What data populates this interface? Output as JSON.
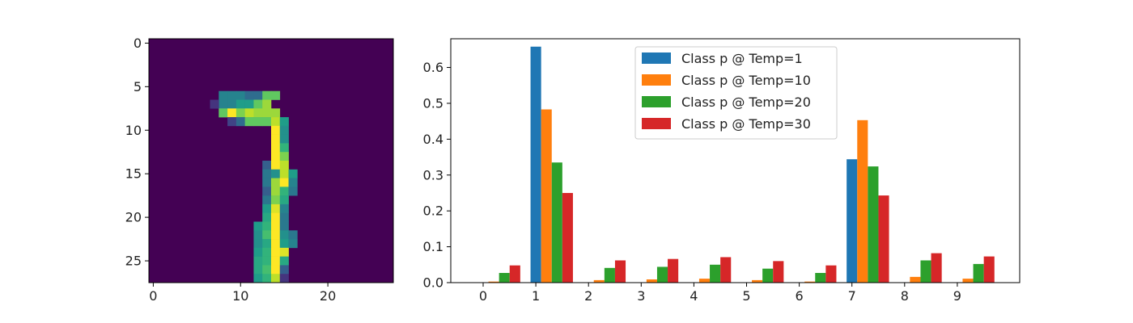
{
  "chart_data": [
    {
      "type": "heatmap",
      "title": "",
      "xlabel": "",
      "ylabel": "",
      "colormap": "viridis",
      "size": [
        28,
        28
      ],
      "xlim": [
        -0.5,
        27.5
      ],
      "ylim": [
        27.5,
        -0.5
      ],
      "xticks": [
        0,
        10,
        20
      ],
      "yticks": [
        0,
        5,
        10,
        15,
        20,
        25
      ],
      "grid": false,
      "pixels": [
        [
          6,
          8,
          0.45
        ],
        [
          7,
          8,
          0.45
        ],
        [
          6,
          9,
          0.45
        ],
        [
          7,
          9,
          0.45
        ],
        [
          6,
          10,
          0.45
        ],
        [
          7,
          10,
          0.55
        ],
        [
          6,
          11,
          0.35
        ],
        [
          7,
          11,
          0.55
        ],
        [
          6,
          12,
          0.35
        ],
        [
          7,
          12,
          0.75
        ],
        [
          6,
          13,
          0.75
        ],
        [
          7,
          13,
          0.85
        ],
        [
          6,
          14,
          0.75
        ],
        [
          7,
          7,
          0.15
        ],
        [
          8,
          8,
          0.75
        ],
        [
          8,
          9,
          1.0
        ],
        [
          8,
          10,
          0.8
        ],
        [
          8,
          11,
          0.9
        ],
        [
          8,
          12,
          0.85
        ],
        [
          8,
          13,
          0.85
        ],
        [
          8,
          14,
          0.85
        ],
        [
          9,
          9,
          0.2
        ],
        [
          9,
          10,
          0.35
        ],
        [
          9,
          11,
          0.75
        ],
        [
          9,
          12,
          0.75
        ],
        [
          9,
          13,
          0.75
        ],
        [
          9,
          14,
          0.9
        ],
        [
          9,
          15,
          0.55
        ],
        [
          10,
          14,
          1.0
        ],
        [
          10,
          15,
          0.5
        ],
        [
          11,
          14,
          1.0
        ],
        [
          11,
          15,
          0.5
        ],
        [
          12,
          14,
          1.0
        ],
        [
          12,
          15,
          0.65
        ],
        [
          13,
          14,
          1.0
        ],
        [
          13,
          15,
          0.8
        ],
        [
          14,
          13,
          0.3
        ],
        [
          14,
          14,
          1.0
        ],
        [
          14,
          15,
          0.9
        ],
        [
          15,
          13,
          0.4
        ],
        [
          15,
          14,
          0.5
        ],
        [
          15,
          15,
          0.9
        ],
        [
          15,
          16,
          0.55
        ],
        [
          16,
          13,
          0.4
        ],
        [
          16,
          14,
          0.85
        ],
        [
          16,
          15,
          1.0
        ],
        [
          16,
          16,
          0.45
        ],
        [
          17,
          13,
          0.3
        ],
        [
          17,
          14,
          0.85
        ],
        [
          17,
          15,
          0.65
        ],
        [
          17,
          16,
          0.4
        ],
        [
          18,
          13,
          0.4
        ],
        [
          18,
          14,
          0.8
        ],
        [
          18,
          15,
          0.6
        ],
        [
          19,
          13,
          0.55
        ],
        [
          19,
          14,
          0.95
        ],
        [
          19,
          15,
          0.45
        ],
        [
          20,
          13,
          0.6
        ],
        [
          20,
          14,
          1.0
        ],
        [
          20,
          15,
          0.4
        ],
        [
          21,
          12,
          0.55
        ],
        [
          21,
          13,
          0.65
        ],
        [
          21,
          14,
          1.0
        ],
        [
          21,
          15,
          0.4
        ],
        [
          22,
          12,
          0.5
        ],
        [
          22,
          13,
          0.7
        ],
        [
          22,
          14,
          1.0
        ],
        [
          22,
          15,
          0.5
        ],
        [
          22,
          16,
          0.4
        ],
        [
          23,
          12,
          0.5
        ],
        [
          23,
          13,
          0.6
        ],
        [
          23,
          14,
          1.0
        ],
        [
          23,
          15,
          0.55
        ],
        [
          23,
          16,
          0.45
        ],
        [
          24,
          12,
          0.55
        ],
        [
          24,
          13,
          0.65
        ],
        [
          24,
          14,
          1.0
        ],
        [
          24,
          15,
          0.95
        ],
        [
          25,
          12,
          0.6
        ],
        [
          25,
          13,
          0.65
        ],
        [
          25,
          14,
          1.0
        ],
        [
          25,
          15,
          0.6
        ],
        [
          26,
          12,
          0.6
        ],
        [
          26,
          13,
          0.7
        ],
        [
          26,
          14,
          1.0
        ],
        [
          26,
          15,
          0.3
        ],
        [
          27,
          12,
          0.55
        ],
        [
          27,
          13,
          0.65
        ],
        [
          27,
          14,
          0.9
        ],
        [
          27,
          15,
          0.15
        ]
      ]
    },
    {
      "type": "bar",
      "title": "",
      "xlabel": "",
      "ylabel": "",
      "categories": [
        "0",
        "1",
        "2",
        "3",
        "4",
        "5",
        "6",
        "7",
        "8",
        "9"
      ],
      "ylim": [
        0,
        0.68
      ],
      "yticks": [
        0.0,
        0.1,
        0.2,
        0.3,
        0.4,
        0.5,
        0.6
      ],
      "ytick_labels": [
        "0.0",
        "0.1",
        "0.2",
        "0.3",
        "0.4",
        "0.5",
        "0.6"
      ],
      "grid": false,
      "legend_position": "top-center",
      "series": [
        {
          "name": "Class p @ Temp=1",
          "color": "#1f77b4",
          "values": [
            0.0,
            0.658,
            0.0,
            0.0,
            0.0,
            0.0,
            0.0,
            0.344,
            0.0,
            0.0
          ]
        },
        {
          "name": "Class p @ Temp=10",
          "color": "#ff7f0e",
          "values": [
            0.003,
            0.483,
            0.007,
            0.009,
            0.011,
            0.007,
            0.003,
            0.453,
            0.016,
            0.011
          ]
        },
        {
          "name": "Class p @ Temp=20",
          "color": "#2ca02c",
          "values": [
            0.027,
            0.335,
            0.041,
            0.044,
            0.05,
            0.039,
            0.027,
            0.324,
            0.062,
            0.052
          ]
        },
        {
          "name": "Class p @ Temp=30",
          "color": "#d62728",
          "values": [
            0.048,
            0.25,
            0.062,
            0.066,
            0.071,
            0.06,
            0.048,
            0.243,
            0.082,
            0.073
          ]
        }
      ]
    }
  ]
}
